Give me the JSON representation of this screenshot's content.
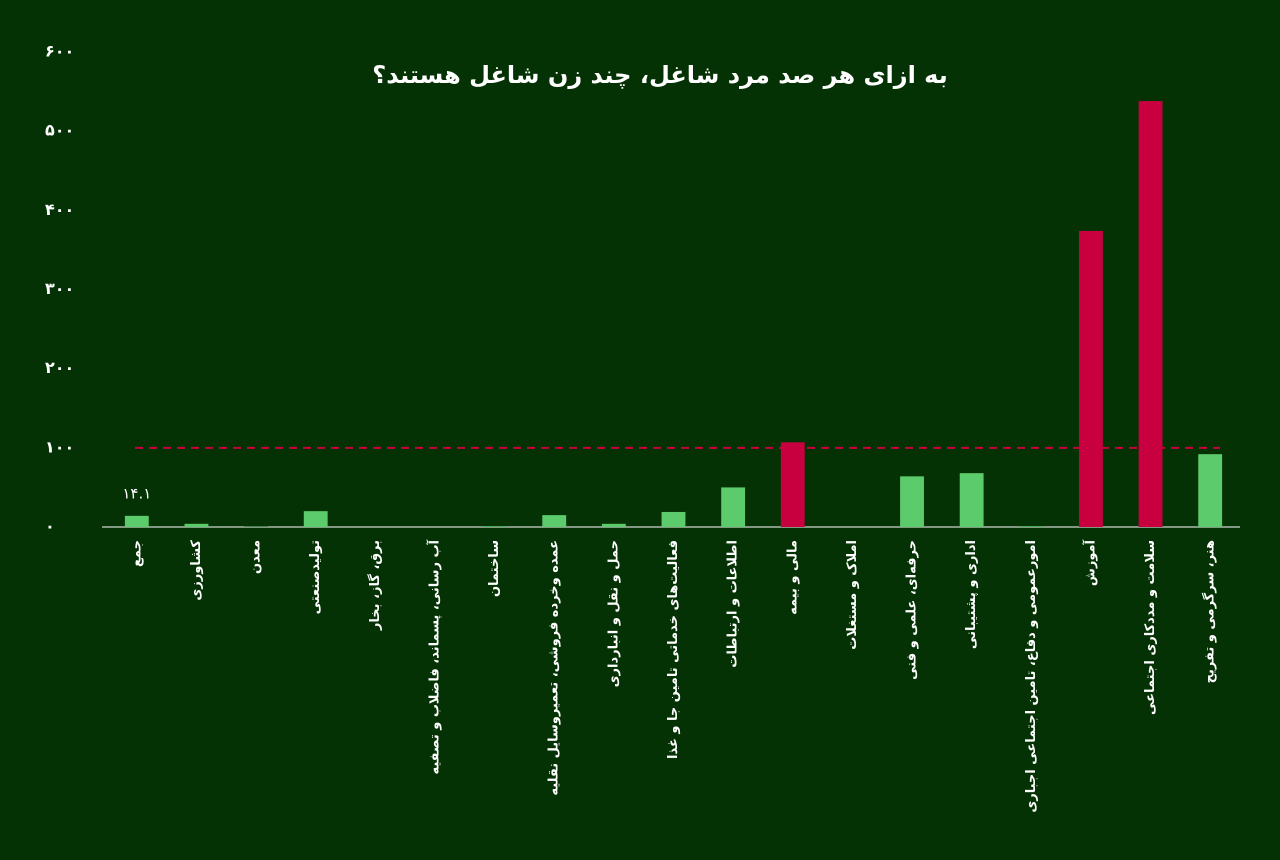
{
  "chart_data": {
    "type": "bar",
    "title": "به ازای هر صد مرد شاغل، چند زن شاغل هستند؟",
    "categories": [
      "جمع",
      "کشاورزی",
      "معدن",
      "تولیدصنعتی",
      "برق، گاز، بخار",
      "آب رسانی، پسماند، فاضلاب و تصفیه",
      "ساختمان",
      "عمده وخرده فروشی، تعمیروسایل نقلیه",
      "حمل و نقل و انبارداری",
      "فعالیت‌های خدماتی تامین جا و غذا",
      "اطلاعات و ارتباطات",
      "مالی و بیمه",
      "املاک و مستغلات",
      "حرفه‌ای، علمی و فنی",
      "اداری و پشتیبانی",
      "امورعمومی و دفاع، تامین اجتماعی اجباری",
      "آموزش",
      "سلامت و مددکاری اجتماعی",
      "هنر، سرگرمی و تفریح"
    ],
    "values": [
      14.1,
      4,
      0.5,
      20,
      0,
      0,
      1,
      15,
      4,
      19,
      50,
      107,
      0,
      64,
      68,
      1,
      374,
      538,
      92
    ],
    "value_labels": [
      "۱۴.۱",
      null,
      null,
      null,
      null,
      null,
      null,
      null,
      null,
      null,
      null,
      null,
      null,
      null,
      null,
      null,
      null,
      null,
      null
    ],
    "colors": [
      "#5ccb6c",
      "#5ccb6c",
      "#5ccb6c",
      "#5ccb6c",
      "#5ccb6c",
      "#5ccb6c",
      "#5ccb6c",
      "#5ccb6c",
      "#5ccb6c",
      "#5ccb6c",
      "#5ccb6c",
      "#c8003f",
      "#5ccb6c",
      "#5ccb6c",
      "#5ccb6c",
      "#5ccb6c",
      "#c8003f",
      "#c8003f",
      "#5ccb6c"
    ],
    "reference_line": 100,
    "reference_color": "#c8003f",
    "ylim": [
      0,
      600
    ],
    "yticks": [
      {
        "value": 0,
        "label": "۰"
      },
      {
        "value": 100,
        "label": "۱۰۰"
      },
      {
        "value": 200,
        "label": "۲۰۰"
      },
      {
        "value": 300,
        "label": "۳۰۰"
      },
      {
        "value": 400,
        "label": "۴۰۰"
      },
      {
        "value": 500,
        "label": "۵۰۰"
      },
      {
        "value": 600,
        "label": "۶۰۰"
      }
    ]
  }
}
